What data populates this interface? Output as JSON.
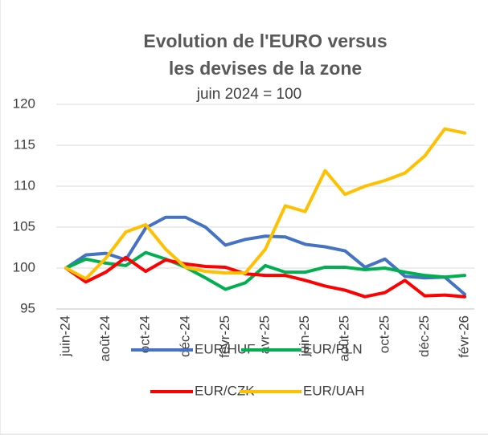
{
  "chart_data": {
    "type": "line",
    "title": "Evolution de l'EURO versus les devises de la zone",
    "subtitle": "juin 2024 = 100",
    "categories": [
      "juin-24",
      null,
      "août-24",
      null,
      "oct-24",
      null,
      "déc-24",
      null,
      "févr-25",
      null,
      "avr-25",
      null,
      "juin-25",
      null,
      "août-25",
      null,
      "oct-25",
      null,
      "déc-25",
      null,
      "févr-26"
    ],
    "series": [
      {
        "name": "EUR/HUF",
        "color": "#4472c4",
        "values": [
          100,
          101.6,
          101.8,
          101.0,
          104.9,
          106.2,
          106.2,
          105.0,
          102.8,
          103.5,
          103.9,
          103.8,
          102.9,
          102.6,
          102.1,
          100.1,
          101.1,
          99.0,
          98.8,
          98.9,
          96.8
        ]
      },
      {
        "name": "EUR/PLN",
        "color": "#00b050",
        "values": [
          100,
          101.1,
          100.6,
          100.3,
          101.9,
          101.1,
          100.1,
          98.8,
          97.4,
          98.2,
          100.3,
          99.5,
          99.5,
          100.1,
          100.1,
          99.8,
          100.0,
          99.5,
          99.1,
          98.9,
          99.1
        ]
      },
      {
        "name": "EUR/CZK",
        "color": "#ff0000",
        "values": [
          100,
          98.3,
          99.5,
          101.3,
          99.6,
          101.0,
          100.5,
          100.2,
          100.1,
          99.3,
          99.1,
          99.1,
          98.5,
          97.8,
          97.3,
          96.5,
          97.0,
          98.5,
          96.6,
          96.7,
          96.5
        ]
      },
      {
        "name": "EUR/UAH",
        "color": "#ffc000",
        "values": [
          100,
          98.7,
          101.2,
          104.4,
          105.3,
          102.3,
          100.1,
          99.6,
          99.4,
          99.4,
          102.3,
          107.6,
          106.9,
          111.9,
          109.0,
          110.0,
          110.7,
          111.6,
          113.7,
          117.0,
          116.5
        ]
      }
    ],
    "ylim": [
      95,
      120
    ],
    "yticks": [
      95,
      100,
      105,
      110,
      115,
      120
    ],
    "grid": true,
    "legend": "bottom"
  }
}
